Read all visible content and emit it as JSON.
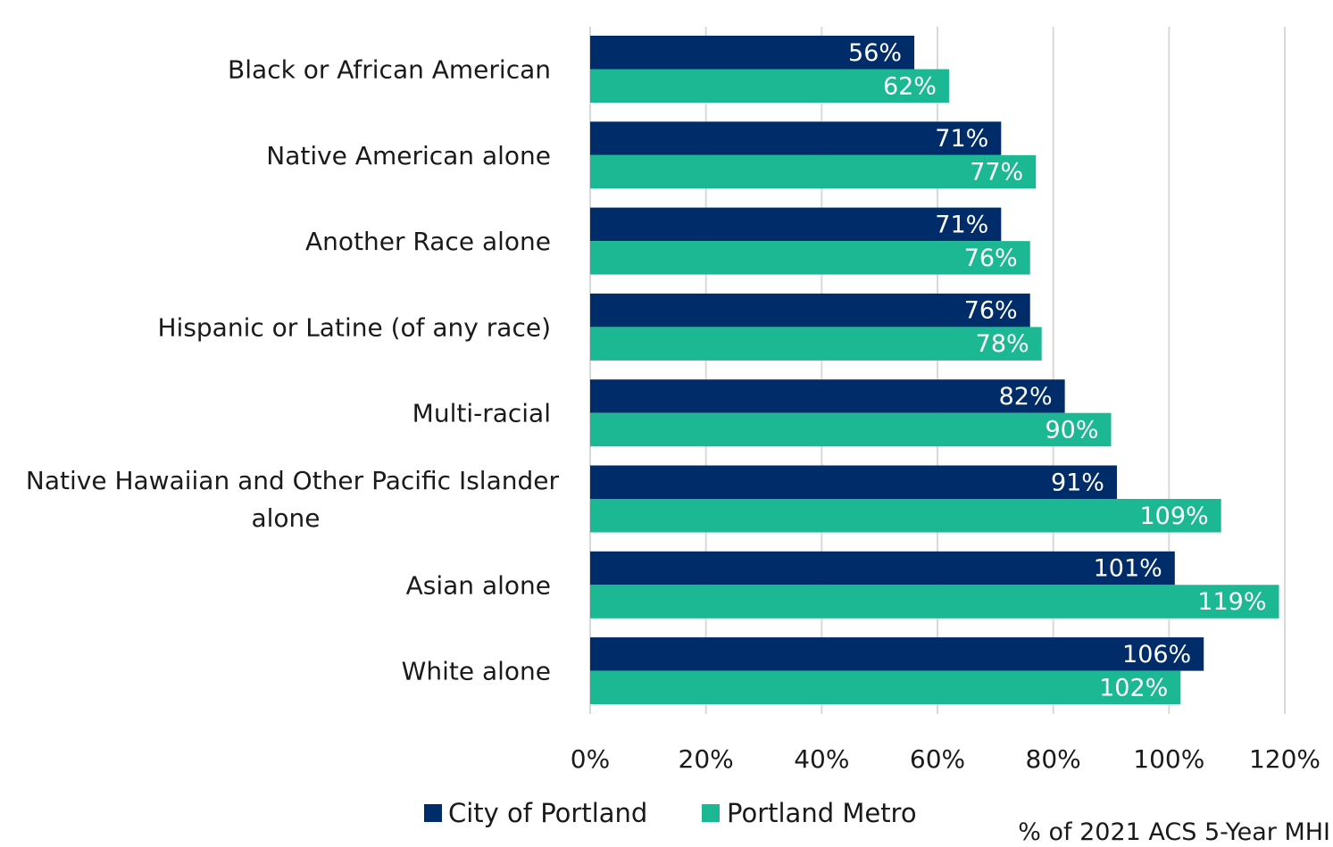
{
  "chart_data": {
    "type": "bar",
    "orientation": "horizontal",
    "categories": [
      "Black or African American",
      "Native American alone",
      "Another Race alone",
      "Hispanic or Latine (of any race)",
      "Multi-racial",
      "Native Hawaiian and Other Pacific Islander alone",
      "Asian alone",
      "White alone"
    ],
    "category_lines": [
      [
        "Black or African American"
      ],
      [
        "Native American alone"
      ],
      [
        "Another Race alone"
      ],
      [
        "Hispanic or Latine (of any race)"
      ],
      [
        "Multi-racial"
      ],
      [
        "Native Hawaiian and Other Pacific Islander",
        "alone"
      ],
      [
        "Asian alone"
      ],
      [
        "White alone"
      ]
    ],
    "series": [
      {
        "name": "City of Portland",
        "color": "#002d6a",
        "values": [
          56,
          71,
          71,
          76,
          82,
          91,
          101,
          106
        ],
        "labels": [
          "56%",
          "71%",
          "71%",
          "76%",
          "82%",
          "91%",
          "101%",
          "106%"
        ]
      },
      {
        "name": "Portland Metro",
        "color": "#1cb894",
        "values": [
          62,
          77,
          76,
          78,
          90,
          109,
          119,
          102
        ],
        "labels": [
          "62%",
          "77%",
          "76%",
          "78%",
          "90%",
          "109%",
          "119%",
          "102%"
        ]
      }
    ],
    "xlim": [
      0,
      120
    ],
    "xticks": [
      0,
      20,
      40,
      60,
      80,
      100,
      120
    ],
    "xtick_labels": [
      "0%",
      "20%",
      "40%",
      "60%",
      "80%",
      "100%",
      "120%"
    ],
    "xlabel": "% of 2021 ACS 5-Year MHI",
    "grid": true,
    "gridline_color": "#d9d9d9",
    "legend_position": "bottom"
  }
}
